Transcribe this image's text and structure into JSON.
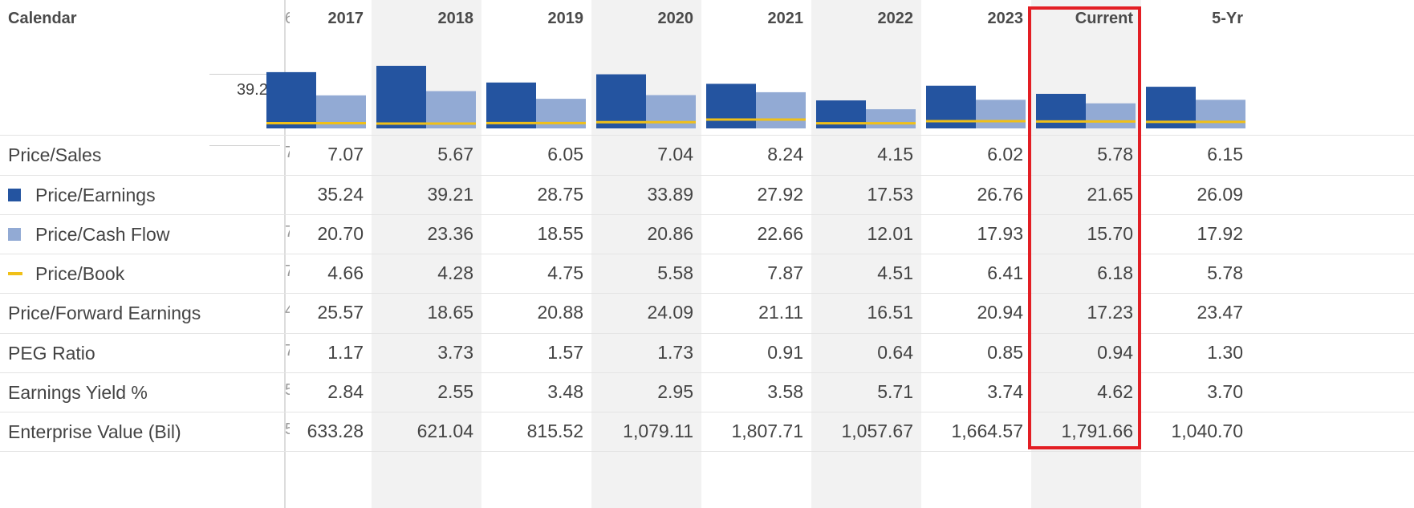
{
  "header": {
    "title": "Calendar",
    "axis_value": "39.21"
  },
  "colors": {
    "pe": "#2454a0",
    "pcf": "#92aad4",
    "pb": "#f0c018",
    "highlight": "#e31e24"
  },
  "legend": {
    "pe": "square",
    "pcf": "square",
    "pb": "line"
  },
  "rows": [
    {
      "label": "Price/Sales",
      "swatch": "",
      "clip": "7"
    },
    {
      "label": "Price/Earnings",
      "swatch": "pe",
      "clip": ""
    },
    {
      "label": "Price/Cash Flow",
      "swatch": "pcf",
      "clip": "7"
    },
    {
      "label": "Price/Book",
      "swatch": "pb",
      "clip": "7"
    },
    {
      "label": "Price/Forward Earnings",
      "swatch": "",
      "clip": "4"
    },
    {
      "label": "PEG Ratio",
      "swatch": "",
      "clip": "7"
    },
    {
      "label": "Earnings Yield %",
      "swatch": "",
      "clip": "5"
    },
    {
      "label": "Enterprise Value (Bil)",
      "swatch": "",
      "clip": "5"
    }
  ],
  "header_clip": "6",
  "columns": [
    {
      "label": "2017",
      "shaded": false,
      "pe": 35.24,
      "pcf": 20.7,
      "pb": 4.66,
      "values": [
        "7.07",
        "35.24",
        "20.70",
        "4.66",
        "25.57",
        "1.17",
        "2.84",
        "633.28"
      ]
    },
    {
      "label": "2018",
      "shaded": true,
      "pe": 39.21,
      "pcf": 23.36,
      "pb": 4.28,
      "values": [
        "5.67",
        "39.21",
        "23.36",
        "4.28",
        "18.65",
        "3.73",
        "2.55",
        "621.04"
      ]
    },
    {
      "label": "2019",
      "shaded": false,
      "pe": 28.75,
      "pcf": 18.55,
      "pb": 4.75,
      "values": [
        "6.05",
        "28.75",
        "18.55",
        "4.75",
        "20.88",
        "1.57",
        "3.48",
        "815.52"
      ]
    },
    {
      "label": "2020",
      "shaded": true,
      "pe": 33.89,
      "pcf": 20.86,
      "pb": 5.58,
      "values": [
        "7.04",
        "33.89",
        "20.86",
        "5.58",
        "24.09",
        "1.73",
        "2.95",
        "1,079.11"
      ]
    },
    {
      "label": "2021",
      "shaded": false,
      "pe": 27.92,
      "pcf": 22.66,
      "pb": 7.87,
      "values": [
        "8.24",
        "27.92",
        "22.66",
        "7.87",
        "21.11",
        "0.91",
        "3.58",
        "1,807.71"
      ]
    },
    {
      "label": "2022",
      "shaded": true,
      "pe": 17.53,
      "pcf": 12.01,
      "pb": 4.51,
      "values": [
        "4.15",
        "17.53",
        "12.01",
        "4.51",
        "16.51",
        "0.64",
        "5.71",
        "1,057.67"
      ]
    },
    {
      "label": "2023",
      "shaded": false,
      "pe": 26.76,
      "pcf": 17.93,
      "pb": 6.41,
      "values": [
        "6.02",
        "26.76",
        "17.93",
        "6.41",
        "20.94",
        "0.85",
        "3.74",
        "1,664.57"
      ]
    },
    {
      "label": "Current",
      "shaded": true,
      "highlight": true,
      "pe": 21.65,
      "pcf": 15.7,
      "pb": 6.18,
      "values": [
        "5.78",
        "21.65",
        "15.70",
        "6.18",
        "17.23",
        "0.94",
        "4.62",
        "1,791.66"
      ]
    },
    {
      "label": "5-Yr",
      "shaded": false,
      "pe": 26.09,
      "pcf": 17.92,
      "pb": 5.78,
      "values": [
        "6.15",
        "26.09",
        "17.92",
        "5.78",
        "23.47",
        "1.30",
        "3.70",
        "1,040.70"
      ]
    }
  ]
}
